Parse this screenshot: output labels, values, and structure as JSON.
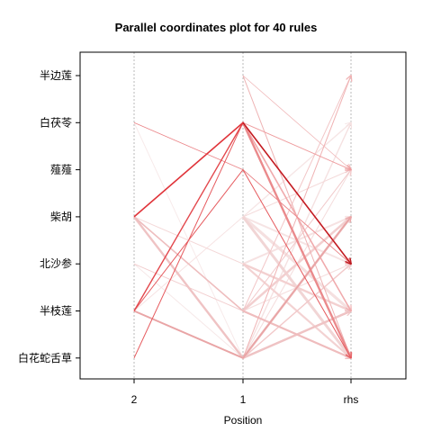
{
  "chart_data": {
    "type": "parallel-coordinates",
    "title": "Parallel coordinates plot for 40 rules",
    "xlabel": "Position",
    "x_ticks": [
      "2",
      "1",
      "rhs"
    ],
    "y_items": [
      "半边莲",
      "白茯苓",
      "薤薤",
      "柴胡",
      "北沙参",
      "半枝莲",
      "白花蛇舌草"
    ],
    "grid": "vertical-dotted",
    "color_scale": "red (high lift) to light pink (low lift)",
    "rules": [
      {
        "from2": "柴胡",
        "from1": "白茯苓",
        "rhs": "北沙参",
        "color": "#e0343a",
        "width": 1.6
      },
      {
        "from2": "半枝莲",
        "from1": "白茯苓",
        "rhs": "北沙参",
        "color": "#e3484d",
        "width": 1.4
      },
      {
        "from2": "白花蛇舌草",
        "from1": "白茯苓",
        "rhs": "北沙参",
        "color": "#e65a5e",
        "width": 1.0
      },
      {
        "from2": "白茯苓",
        "from1": "薤薤",
        "rhs": "北沙参",
        "color": "#ea8286",
        "width": 0.8
      },
      {
        "from2": null,
        "from1": "白茯苓",
        "rhs": "北沙参",
        "color": "#b81c22",
        "width": 1.0
      },
      {
        "from2": null,
        "from1": "白茯苓",
        "rhs": "白花蛇舌草",
        "color": "#ea8a8c",
        "width": 2.4
      },
      {
        "from2": null,
        "from1": "白茯苓",
        "rhs": "薤薤",
        "color": "#ee9b9d",
        "width": 1.0
      },
      {
        "from2": null,
        "from1": "白茯苓",
        "rhs": "半枝莲",
        "color": "#f0aaac",
        "width": 1.6
      },
      {
        "from2": "半枝莲",
        "from1": "薤薤",
        "rhs": "白花蛇舌草",
        "color": "#e5585c",
        "width": 1.0
      },
      {
        "from2": "半枝莲",
        "from1": "白花蛇舌草",
        "rhs": "柴胡",
        "color": "#e9a5a6",
        "width": 2.0
      },
      {
        "from2": "柴胡",
        "from1": "白花蛇舌草",
        "rhs": "半枝莲",
        "color": "#efc3c4",
        "width": 2.4
      },
      {
        "from2": "柴胡",
        "from1": "半枝莲",
        "rhs": "白花蛇舌草",
        "color": "#eebdbe",
        "width": 1.6
      },
      {
        "from2": "北沙参",
        "from1": "半枝莲",
        "rhs": "柴胡",
        "color": "#f2cdce",
        "width": 1.0
      },
      {
        "from2": "柴胡",
        "from1": "北沙参",
        "rhs": "半枝莲",
        "color": "#f4d8d8",
        "width": 1.0
      },
      {
        "from2": null,
        "from1": "柴胡",
        "rhs": "白花蛇舌草",
        "color": "#f1d5d5",
        "width": 3.0
      },
      {
        "from2": null,
        "from1": "柴胡",
        "rhs": "半枝莲",
        "color": "#f5e0e0",
        "width": 3.2
      },
      {
        "from2": null,
        "from1": "柴胡",
        "rhs": "北沙参",
        "color": "#f6e4e4",
        "width": 2.0
      },
      {
        "from2": null,
        "from1": "半枝莲",
        "rhs": "柴胡",
        "color": "#f3d3d3",
        "width": 2.6
      },
      {
        "from2": null,
        "from1": "半枝莲",
        "rhs": "白花蛇舌草",
        "color": "#efbcbd",
        "width": 2.2
      },
      {
        "from2": null,
        "from1": "北沙参",
        "rhs": "白花蛇舌草",
        "color": "#f3d2d2",
        "width": 2.2
      },
      {
        "from2": null,
        "from1": "北沙参",
        "rhs": "柴胡",
        "color": "#f6e2e2",
        "width": 2.0
      },
      {
        "from2": null,
        "from1": "白花蛇舌草",
        "rhs": "半边莲",
        "color": "#f0b2b3",
        "width": 1.0
      },
      {
        "from2": null,
        "from1": "白花蛇舌草",
        "rhs": "柴胡",
        "color": "#f4dada",
        "width": 2.8
      },
      {
        "from2": null,
        "from1": "白花蛇舌草",
        "rhs": "北沙参",
        "color": "#f2c9ca",
        "width": 1.4
      },
      {
        "from2": null,
        "from1": "白花蛇舌草",
        "rhs": "白茯苓",
        "color": "#f5e1e1",
        "width": 1.4
      },
      {
        "from2": null,
        "from1": "白花蛇舌草",
        "rhs": "半枝莲",
        "color": "#f1c4c5",
        "width": 2.2
      },
      {
        "from2": null,
        "from1": "薤薤",
        "rhs": "北沙参",
        "color": "#f3cece",
        "width": 1.0
      },
      {
        "from2": null,
        "from1": "半边莲",
        "rhs": "白花蛇舌草",
        "color": "#eeb3b4",
        "width": 1.0
      },
      {
        "from2": null,
        "from1": "半枝莲",
        "rhs": "半边莲",
        "color": "#f2c6c7",
        "width": 1.0
      },
      {
        "from2": null,
        "from1": "柴胡",
        "rhs": "白茯苓",
        "color": "#f6e6e6",
        "width": 1.4
      },
      {
        "from2": null,
        "from1": "半枝莲",
        "rhs": "薤薤",
        "color": "#f1c8c9",
        "width": 1.0
      },
      {
        "from2": null,
        "from1": "柴胡",
        "rhs": "薤薤",
        "color": "#f4d9d9",
        "width": 1.0
      },
      {
        "from2": null,
        "from1": "北沙参",
        "rhs": "半枝莲",
        "color": "#f3d0d0",
        "width": 2.4
      },
      {
        "from2": null,
        "from1": "半边莲",
        "rhs": "薤薤",
        "color": "#f0b8b9",
        "width": 0.8
      },
      {
        "from2": null,
        "from1": "白花蛇舌草",
        "rhs": "薤薤",
        "color": "#f4dcdc",
        "width": 1.0
      },
      {
        "from2": null,
        "from1": "半枝莲",
        "rhs": "北沙参",
        "color": "#f5dfdf",
        "width": 1.0
      },
      {
        "from2": "半枝莲",
        "from1": "柴胡",
        "rhs": "白花蛇舌草",
        "color": "#f6e3e3",
        "width": 1.0
      },
      {
        "from2": "北沙参",
        "from1": "白花蛇舌草",
        "rhs": "半枝莲",
        "color": "#f6e8e8",
        "width": 1.0
      },
      {
        "from2": "白茯苓",
        "from1": "白花蛇舌草",
        "rhs": "柴胡",
        "color": "#f7eaea",
        "width": 1.0
      },
      {
        "from2": "柴胡",
        "from1": "半枝莲",
        "rhs": "北沙参",
        "color": "#f7ecec",
        "width": 1.0
      }
    ]
  }
}
